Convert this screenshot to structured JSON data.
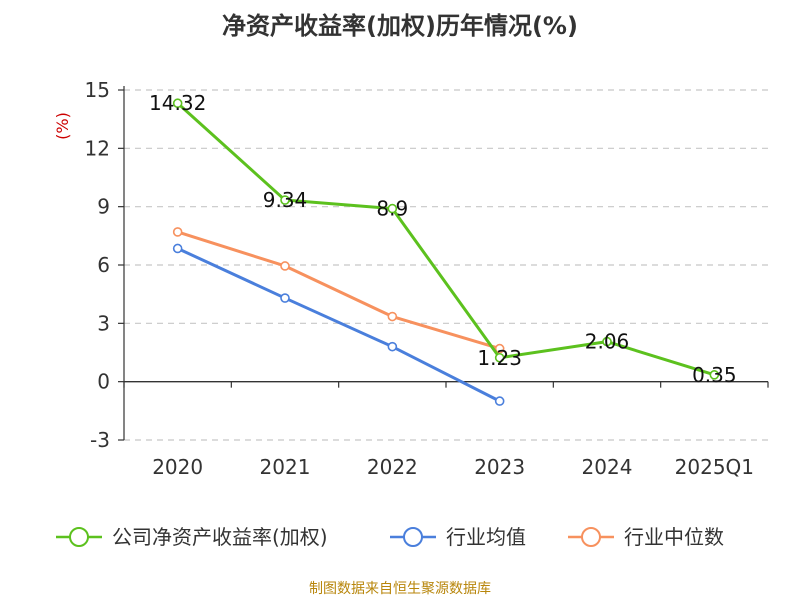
{
  "chart_data": {
    "type": "line",
    "title": "净资产收益率(加权)历年情况(%)",
    "ylabel": "(%)",
    "xlabel": "",
    "categories": [
      "2020",
      "2021",
      "2022",
      "2023",
      "2024",
      "2025Q1"
    ],
    "ylim": [
      -3,
      15
    ],
    "yticks": [
      -3,
      0,
      3,
      6,
      9,
      12,
      15
    ],
    "grid": true,
    "legend_position": "bottom",
    "series": [
      {
        "name": "公司净资产收益率(加权)",
        "color": "#5cc11e",
        "values": [
          14.32,
          9.34,
          8.9,
          1.23,
          2.06,
          0.35
        ],
        "labels": [
          "14.32",
          "9.34",
          "8.9",
          "1.23",
          "2.06",
          "0.35"
        ]
      },
      {
        "name": "行业均值",
        "color": "#4a7fdc",
        "values": [
          6.85,
          4.3,
          1.8,
          -1.0,
          null,
          null
        ]
      },
      {
        "name": "行业中位数",
        "color": "#f7915e",
        "values": [
          7.7,
          5.95,
          3.35,
          1.7,
          null,
          null
        ]
      }
    ]
  },
  "footer": "制图数据来自恒生聚源数据库"
}
